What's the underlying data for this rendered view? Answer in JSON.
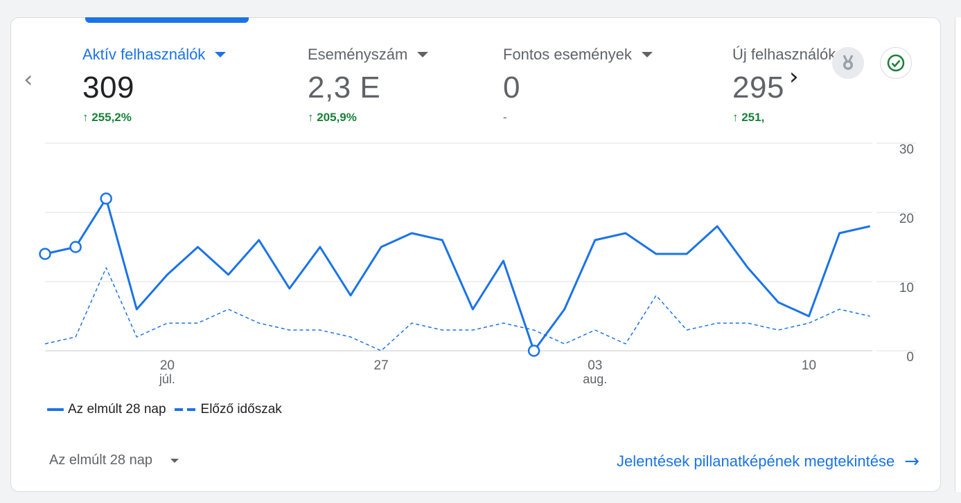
{
  "metrics": [
    {
      "label": "Aktív felhasználók",
      "value": "309",
      "change": "↑ 255,2%",
      "active": true
    },
    {
      "label": "Eseményszám",
      "value": "2,3 E",
      "change": "↑ 205,9%"
    },
    {
      "label": "Fontos események",
      "value": "0",
      "change": "-"
    },
    {
      "label": "Új felhasználók",
      "value": "295",
      "change": "↑ 251,"
    }
  ],
  "nav": {
    "prev_icon": "chevron-left-icon",
    "next_icon": "chevron-right-icon"
  },
  "icons": {
    "badge": "medal-icon",
    "status": "check-circle-icon"
  },
  "colors": {
    "accent": "#1a73e8",
    "positive": "#188038",
    "status_ok": "#188038",
    "muted": "#5f6368"
  },
  "chart_data": {
    "type": "line",
    "x_tick_labels": [
      {
        "day": "20",
        "month": "júl."
      },
      {
        "day": "27",
        "month": ""
      },
      {
        "day": "03",
        "month": "aug."
      },
      {
        "day": "10",
        "month": ""
      }
    ],
    "y_ticks": [
      "0",
      "10",
      "20",
      "30"
    ],
    "ylim": [
      0,
      30
    ],
    "grid": true,
    "series": [
      {
        "name": "Az elmúlt 28 nap",
        "style": "solid",
        "values": [
          14,
          15,
          22,
          6,
          11,
          15,
          11,
          16,
          9,
          15,
          8,
          15,
          17,
          16,
          6,
          13,
          0,
          6,
          16,
          17,
          14,
          14,
          18,
          12,
          7,
          5,
          17,
          18
        ],
        "highlighted_indices": [
          0,
          1,
          2,
          16
        ]
      },
      {
        "name": "Előző időszak",
        "style": "dashed",
        "values": [
          1,
          2,
          12,
          2,
          4,
          4,
          6,
          4,
          3,
          3,
          2,
          0,
          4,
          3,
          3,
          4,
          3,
          1,
          3,
          1,
          8,
          3,
          4,
          4,
          3,
          4,
          6,
          5
        ]
      }
    ]
  },
  "footer": {
    "period": "Az elmúlt 28 nap",
    "report_link": "Jelentések pillanatképének megtekintése",
    "report_arrow": "→"
  }
}
